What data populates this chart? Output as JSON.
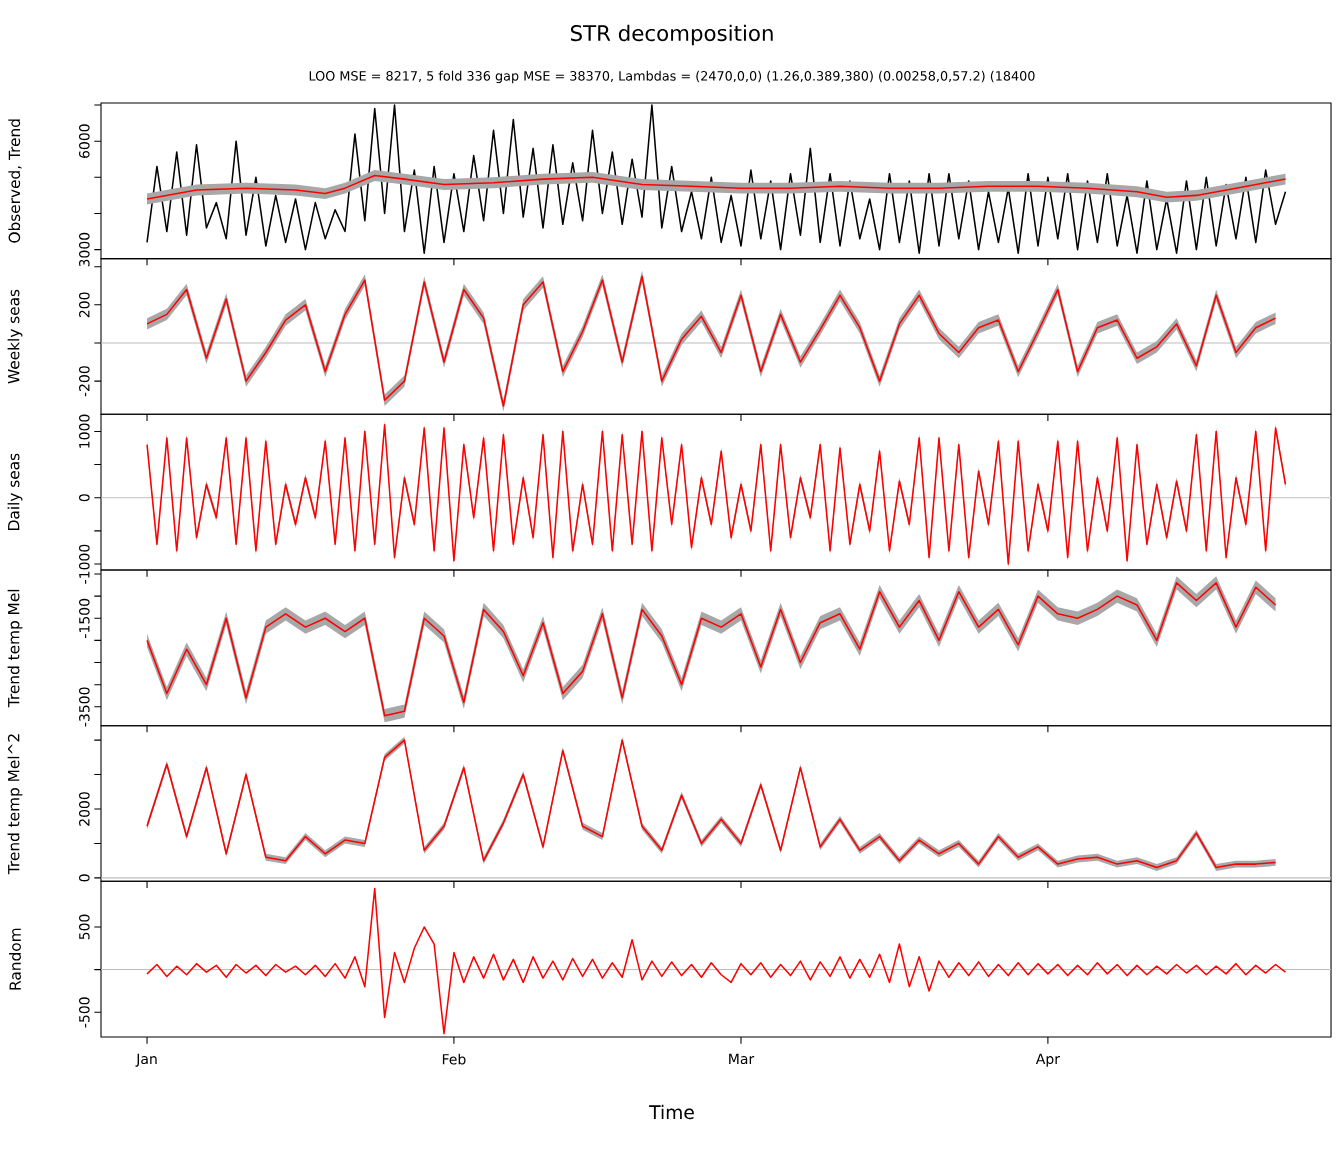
{
  "chart_data": [
    {
      "type": "line",
      "title": "STR decomposition",
      "subtitle": "LOO MSE = 8217, 5 fold 336 gap MSE = 38370, Lambdas = (2470,0,0) (1.26,0.389,380) (0.00258,0,57.2) (18400",
      "ylabel": "Observed, Trend",
      "x": [
        "2000-01-01",
        "2000-01-02",
        "2000-01-03",
        "2000-01-04",
        "2000-01-05",
        "2000-01-06",
        "2000-01-07",
        "2000-01-08",
        "2000-01-09",
        "2000-01-10",
        "2000-01-11",
        "2000-01-12",
        "2000-01-13",
        "2000-01-14",
        "2000-01-15",
        "2000-01-16",
        "2000-01-17",
        "2000-01-18",
        "2000-01-19",
        "2000-01-20",
        "2000-01-21",
        "2000-01-22",
        "2000-01-23",
        "2000-01-24",
        "2000-01-25",
        "2000-01-26",
        "2000-01-27",
        "2000-01-28",
        "2000-01-29",
        "2000-01-30",
        "2000-01-31",
        "2000-02-01",
        "2000-02-02",
        "2000-02-03",
        "2000-02-04",
        "2000-02-05",
        "2000-02-06",
        "2000-02-07",
        "2000-02-08",
        "2000-02-09",
        "2000-02-10",
        "2000-02-11",
        "2000-02-12",
        "2000-02-13",
        "2000-02-14",
        "2000-02-15",
        "2000-02-16",
        "2000-02-17",
        "2000-02-18",
        "2000-02-19",
        "2000-02-20",
        "2000-02-21",
        "2000-02-22",
        "2000-02-23",
        "2000-02-24",
        "2000-02-25",
        "2000-02-26",
        "2000-02-27",
        "2000-02-28",
        "2000-02-29",
        "2000-03-01",
        "2000-03-02",
        "2000-03-03",
        "2000-03-04",
        "2000-03-05",
        "2000-03-06",
        "2000-03-07",
        "2000-03-08",
        "2000-03-09",
        "2000-03-10",
        "2000-03-11",
        "2000-03-12",
        "2000-03-13",
        "2000-03-14",
        "2000-03-15",
        "2000-03-16",
        "2000-03-17",
        "2000-03-18",
        "2000-03-19",
        "2000-03-20",
        "2000-03-21",
        "2000-03-22",
        "2000-03-23",
        "2000-03-24",
        "2000-03-25",
        "2000-03-26",
        "2000-03-27",
        "2000-03-28",
        "2000-03-29",
        "2000-03-30",
        "2000-03-31",
        "2000-04-01",
        "2000-04-02",
        "2000-04-03",
        "2000-04-04",
        "2000-04-05",
        "2000-04-06",
        "2000-04-07",
        "2000-04-08",
        "2000-04-09",
        "2000-04-10",
        "2000-04-11",
        "2000-04-12",
        "2000-04-13",
        "2000-04-14",
        "2000-04-15",
        "2000-04-16",
        "2000-04-17",
        "2000-04-18",
        "2000-04-19",
        "2000-04-20",
        "2000-04-21",
        "2000-04-22",
        "2000-04-23",
        "2000-04-24",
        "2000-04-25"
      ],
      "series": [
        {
          "color": "#000000",
          "values": [
            3200,
            5300,
            3500,
            5700,
            3400,
            5900,
            3600,
            4300,
            3300,
            6000,
            3400,
            5000,
            3100,
            4500,
            3200,
            4400,
            3000,
            4300,
            3300,
            4100,
            3500,
            6200,
            3800,
            6900,
            4000,
            7000,
            3500,
            5200,
            2900,
            5300,
            3200,
            5100,
            3500,
            5600,
            3800,
            6300,
            4000,
            6600,
            3900,
            5800,
            3600,
            5900,
            3700,
            5400,
            3800,
            6300,
            4000,
            5700,
            3700,
            5500,
            3900,
            7000,
            3600,
            5300,
            3500,
            4600,
            3300,
            5000,
            3200,
            4500,
            3100,
            5200,
            3300,
            4900,
            3000,
            5100,
            3400,
            5800,
            3200,
            5100,
            3100,
            4900,
            3300,
            4400,
            3000,
            5100,
            3200,
            4900,
            2900,
            5100,
            3100,
            5100,
            3300,
            4900,
            3000,
            4600,
            3200,
            4700,
            2900,
            5100,
            3100,
            5000,
            3300,
            5100,
            3000,
            4900,
            3200,
            5100,
            3100,
            4500,
            2900,
            4900,
            3000,
            4400,
            2900,
            4900,
            3000,
            5000,
            3100,
            4800,
            3300,
            5000,
            3200,
            5200,
            3700,
            4600
          ]
        },
        {
          "color": "#ff0000",
          "x": [
            "2000-01-01",
            "2000-01-06",
            "2000-01-11",
            "2000-01-16",
            "2000-01-19",
            "2000-01-21",
            "2000-01-24",
            "2000-01-27",
            "2000-01-31",
            "2000-02-05",
            "2000-02-10",
            "2000-02-15",
            "2000-02-20",
            "2000-02-25",
            "2000-03-01",
            "2000-03-06",
            "2000-03-11",
            "2000-03-16",
            "2000-03-21",
            "2000-03-26",
            "2000-03-31",
            "2000-04-05",
            "2000-04-10",
            "2000-04-13",
            "2000-04-16",
            "2000-04-20",
            "2000-04-25"
          ],
          "values": [
            4400,
            4650,
            4700,
            4650,
            4550,
            4700,
            5050,
            4950,
            4800,
            4850,
            4950,
            5000,
            4800,
            4750,
            4700,
            4700,
            4750,
            4700,
            4700,
            4750,
            4750,
            4700,
            4600,
            4450,
            4500,
            4700,
            4950
          ],
          "lower": [
            4250,
            4500,
            4550,
            4500,
            4400,
            4550,
            4900,
            4800,
            4650,
            4700,
            4800,
            4850,
            4650,
            4600,
            4550,
            4550,
            4600,
            4550,
            4550,
            4600,
            4600,
            4550,
            4450,
            4300,
            4350,
            4550,
            4800
          ],
          "upper": [
            4550,
            4800,
            4850,
            4800,
            4700,
            4850,
            5200,
            5100,
            4950,
            5000,
            5100,
            5150,
            4950,
            4900,
            4850,
            4850,
            4900,
            4850,
            4850,
            4900,
            4900,
            4850,
            4750,
            4600,
            4650,
            4850,
            5100
          ]
        }
      ],
      "xlim": [
        "1999-12-27T08:24",
        "2000-04-29T14:24"
      ],
      "xticks": [
        {
          "value": "2000-01-01",
          "label": null
        },
        {
          "value": "2000-02-01",
          "label": null
        },
        {
          "value": "2000-03-01",
          "label": null
        },
        {
          "value": "2000-04-01",
          "label": null
        }
      ],
      "ylim": [
        2750,
        7056
      ],
      "yticks": [
        3000,
        {
          "value": 4000,
          "label": null
        },
        {
          "value": 5000,
          "label": null
        },
        6000,
        {
          "value": 7000,
          "label": null
        }
      ],
      "tick_labels": "y"
    },
    {
      "type": "line",
      "ylabel": "Weekly seas",
      "x": [
        "2000-01-01",
        "2000-01-03",
        "2000-01-05",
        "2000-01-07",
        "2000-01-09",
        "2000-01-11",
        "2000-01-13",
        "2000-01-15",
        "2000-01-17",
        "2000-01-19",
        "2000-01-21",
        "2000-01-23",
        "2000-01-25",
        "2000-01-27",
        "2000-01-29",
        "2000-01-31",
        "2000-02-02",
        "2000-02-04",
        "2000-02-06",
        "2000-02-08",
        "2000-02-10",
        "2000-02-12",
        "2000-02-14",
        "2000-02-16",
        "2000-02-18",
        "2000-02-20",
        "2000-02-22",
        "2000-02-24",
        "2000-02-26",
        "2000-02-28",
        "2000-03-01",
        "2000-03-03",
        "2000-03-05",
        "2000-03-07",
        "2000-03-09",
        "2000-03-11",
        "2000-03-13",
        "2000-03-15",
        "2000-03-17",
        "2000-03-19",
        "2000-03-21",
        "2000-03-23",
        "2000-03-25",
        "2000-03-27",
        "2000-03-29",
        "2000-03-31",
        "2000-04-02",
        "2000-04-04",
        "2000-04-06",
        "2000-04-08",
        "2000-04-10",
        "2000-04-12",
        "2000-04-14",
        "2000-04-16",
        "2000-04-18",
        "2000-04-20",
        "2000-04-22",
        "2000-04-24"
      ],
      "series": [
        {
          "color": "#ff0000",
          "values": [
            100,
            150,
            280,
            -80,
            230,
            -200,
            -50,
            120,
            200,
            -150,
            150,
            330,
            -300,
            -200,
            320,
            -100,
            280,
            130,
            -330,
            200,
            320,
            -150,
            60,
            330,
            -100,
            350,
            -200,
            20,
            140,
            -50,
            250,
            -150,
            150,
            -100,
            70,
            250,
            80,
            -200,
            100,
            250,
            50,
            -50,
            80,
            120,
            -150,
            60,
            280,
            -150,
            80,
            120,
            -80,
            -20,
            100,
            -120,
            250,
            -50,
            80,
            130
          ],
          "lower": [
            70,
            120,
            250,
            -110,
            200,
            -230,
            -80,
            90,
            170,
            -180,
            120,
            300,
            -330,
            -230,
            290,
            -130,
            250,
            100,
            -360,
            170,
            290,
            -180,
            30,
            300,
            -130,
            320,
            -230,
            -10,
            110,
            -80,
            220,
            -180,
            120,
            -130,
            40,
            220,
            50,
            -230,
            70,
            220,
            20,
            -80,
            50,
            90,
            -180,
            30,
            250,
            -180,
            50,
            90,
            -110,
            -50,
            70,
            -150,
            220,
            -80,
            50,
            100
          ],
          "upper": [
            130,
            180,
            310,
            -50,
            260,
            -170,
            -20,
            150,
            230,
            -120,
            180,
            360,
            -270,
            -170,
            350,
            -70,
            310,
            160,
            -300,
            230,
            350,
            -120,
            90,
            360,
            -70,
            380,
            -170,
            50,
            170,
            -20,
            280,
            -120,
            180,
            -70,
            100,
            280,
            110,
            -170,
            130,
            280,
            80,
            -20,
            110,
            150,
            -120,
            90,
            310,
            -120,
            110,
            150,
            -50,
            10,
            130,
            -90,
            280,
            -20,
            110,
            160
          ]
        }
      ],
      "ref_lines": [
        {
          "axis": "y",
          "value": 0,
          "color": "#bebebe"
        }
      ],
      "xlim": [
        "1999-12-27T08:24",
        "2000-04-29T14:24"
      ],
      "xticks": [
        {
          "value": "2000-01-01",
          "label": null
        },
        {
          "value": "2000-02-01",
          "label": null
        },
        {
          "value": "2000-03-01",
          "label": null
        },
        {
          "value": "2000-04-01",
          "label": null
        }
      ],
      "ylim": [
        -374,
        442
      ],
      "yticks": [
        -200,
        {
          "value": 0,
          "label": null
        },
        200,
        {
          "value": 400,
          "label": null
        }
      ],
      "tick_labels": "y"
    },
    {
      "type": "line",
      "ylabel": "Daily seas",
      "x": [
        "2000-01-01",
        "2000-01-02",
        "2000-01-03",
        "2000-01-04",
        "2000-01-05",
        "2000-01-06",
        "2000-01-07",
        "2000-01-08",
        "2000-01-09",
        "2000-01-10",
        "2000-01-11",
        "2000-01-12",
        "2000-01-13",
        "2000-01-14",
        "2000-01-15",
        "2000-01-16",
        "2000-01-17",
        "2000-01-18",
        "2000-01-19",
        "2000-01-20",
        "2000-01-21",
        "2000-01-22",
        "2000-01-23",
        "2000-01-24",
        "2000-01-25",
        "2000-01-26",
        "2000-01-27",
        "2000-01-28",
        "2000-01-29",
        "2000-01-30",
        "2000-01-31",
        "2000-02-01",
        "2000-02-02",
        "2000-02-03",
        "2000-02-04",
        "2000-02-05",
        "2000-02-06",
        "2000-02-07",
        "2000-02-08",
        "2000-02-09",
        "2000-02-10",
        "2000-02-11",
        "2000-02-12",
        "2000-02-13",
        "2000-02-14",
        "2000-02-15",
        "2000-02-16",
        "2000-02-17",
        "2000-02-18",
        "2000-02-19",
        "2000-02-20",
        "2000-02-21",
        "2000-02-22",
        "2000-02-23",
        "2000-02-24",
        "2000-02-25",
        "2000-02-26",
        "2000-02-27",
        "2000-02-28",
        "2000-02-29",
        "2000-03-01",
        "2000-03-02",
        "2000-03-03",
        "2000-03-04",
        "2000-03-05",
        "2000-03-06",
        "2000-03-07",
        "2000-03-08",
        "2000-03-09",
        "2000-03-10",
        "2000-03-11",
        "2000-03-12",
        "2000-03-13",
        "2000-03-14",
        "2000-03-15",
        "2000-03-16",
        "2000-03-17",
        "2000-03-18",
        "2000-03-19",
        "2000-03-20",
        "2000-03-21",
        "2000-03-22",
        "2000-03-23",
        "2000-03-24",
        "2000-03-25",
        "2000-03-26",
        "2000-03-27",
        "2000-03-28",
        "2000-03-29",
        "2000-03-30",
        "2000-03-31",
        "2000-04-01",
        "2000-04-02",
        "2000-04-03",
        "2000-04-04",
        "2000-04-05",
        "2000-04-06",
        "2000-04-07",
        "2000-04-08",
        "2000-04-09",
        "2000-04-10",
        "2000-04-11",
        "2000-04-12",
        "2000-04-13",
        "2000-04-14",
        "2000-04-15",
        "2000-04-16",
        "2000-04-17",
        "2000-04-18",
        "2000-04-19",
        "2000-04-20",
        "2000-04-21",
        "2000-04-22",
        "2000-04-23",
        "2000-04-24",
        "2000-04-25"
      ],
      "series": [
        {
          "color": "#ff0000",
          "values": [
            800,
            -700,
            900,
            -800,
            900,
            -600,
            200,
            -300,
            900,
            -700,
            900,
            -800,
            850,
            -700,
            200,
            -400,
            300,
            -300,
            850,
            -700,
            900,
            -800,
            1000,
            -700,
            1100,
            -900,
            300,
            -400,
            1050,
            -800,
            1050,
            -950,
            800,
            -300,
            900,
            -800,
            950,
            -700,
            300,
            -600,
            950,
            -900,
            1000,
            -800,
            200,
            -700,
            1000,
            -800,
            950,
            -700,
            1000,
            -800,
            900,
            -400,
            800,
            -750,
            300,
            -400,
            700,
            -600,
            200,
            -500,
            800,
            -800,
            800,
            -600,
            300,
            -300,
            800,
            -800,
            750,
            -700,
            200,
            -500,
            700,
            -800,
            250,
            -400,
            900,
            -900,
            900,
            -800,
            800,
            -900,
            400,
            -400,
            850,
            -1000,
            850,
            -800,
            200,
            -500,
            850,
            -900,
            850,
            -800,
            300,
            -500,
            900,
            -950,
            800,
            -700,
            200,
            -600,
            250,
            -500,
            950,
            -800,
            1000,
            -900,
            300,
            -400,
            1000,
            -800,
            1050,
            200
          ],
          "lower": [
            740,
            -760,
            840,
            -860,
            840,
            -660,
            140,
            -360,
            840,
            -760,
            840,
            -860,
            790,
            -760,
            140,
            -460,
            240,
            -360,
            790,
            -760,
            840,
            -860,
            940,
            -760,
            1040,
            -960,
            240,
            -460,
            990,
            -860,
            990,
            -1010,
            740,
            -360,
            840,
            -860,
            890,
            -760,
            240,
            -660,
            890,
            -960,
            940,
            -860,
            140,
            -760,
            940,
            -860,
            890,
            -760,
            940,
            -860,
            840,
            -460,
            740,
            -810,
            240,
            -460,
            640,
            -660,
            140,
            -560,
            740,
            -860,
            740,
            -660,
            240,
            -360,
            740,
            -860,
            690,
            -760,
            140,
            -560,
            640,
            -860,
            190,
            -460,
            840,
            -960,
            840,
            -860,
            740,
            -960,
            340,
            -460,
            790,
            -1060,
            790,
            -860,
            140,
            -560,
            790,
            -960,
            790,
            -860,
            240,
            -560,
            840,
            -1010,
            740,
            -760,
            140,
            -660,
            190,
            -560,
            890,
            -860,
            940,
            -960,
            240,
            -460,
            940,
            -860,
            990,
            140
          ],
          "upper": [
            860,
            -640,
            960,
            -740,
            960,
            -540,
            260,
            -240,
            960,
            -640,
            960,
            -740,
            910,
            -640,
            260,
            -340,
            360,
            -240,
            910,
            -640,
            960,
            -740,
            1060,
            -640,
            1160,
            -840,
            360,
            -340,
            1110,
            -740,
            1110,
            -890,
            860,
            -240,
            960,
            -740,
            1010,
            -640,
            360,
            -540,
            1010,
            -840,
            1060,
            -740,
            260,
            -640,
            1060,
            -740,
            1010,
            -640,
            1060,
            -740,
            960,
            -340,
            860,
            -690,
            360,
            -340,
            760,
            -540,
            260,
            -440,
            860,
            -740,
            860,
            -540,
            360,
            -240,
            860,
            -740,
            810,
            -640,
            260,
            -440,
            760,
            -740,
            310,
            -340,
            960,
            -840,
            960,
            -740,
            860,
            -840,
            460,
            -340,
            910,
            -940,
            910,
            -740,
            260,
            -440,
            910,
            -840,
            910,
            -740,
            360,
            -440,
            960,
            -890,
            860,
            -640,
            260,
            -540,
            310,
            -440,
            1010,
            -740,
            1060,
            -840,
            360,
            -340,
            1060,
            -740,
            1110,
            260
          ]
        }
      ],
      "ref_lines": [
        {
          "axis": "y",
          "value": 0,
          "color": "#bebebe"
        }
      ],
      "xlim": [
        "1999-12-27T08:24",
        "2000-04-29T14:24"
      ],
      "xticks": [
        {
          "value": "2000-01-01",
          "label": null
        },
        {
          "value": "2000-02-01",
          "label": null
        },
        {
          "value": "2000-03-01",
          "label": null
        },
        {
          "value": "2000-04-01",
          "label": null
        }
      ],
      "ylim": [
        -1090,
        1258
      ],
      "yticks": [
        -1000,
        {
          "value": -500,
          "label": null
        },
        0,
        {
          "value": 500,
          "label": null
        },
        1000
      ],
      "tick_labels": "y"
    },
    {
      "type": "line",
      "ylabel": "Trend temp Mel",
      "x": [
        "2000-01-01",
        "2000-01-03",
        "2000-01-05",
        "2000-01-07",
        "2000-01-09",
        "2000-01-11",
        "2000-01-13",
        "2000-01-15",
        "2000-01-17",
        "2000-01-19",
        "2000-01-21",
        "2000-01-23",
        "2000-01-25",
        "2000-01-27",
        "2000-01-29",
        "2000-01-31",
        "2000-02-02",
        "2000-02-04",
        "2000-02-06",
        "2000-02-08",
        "2000-02-10",
        "2000-02-12",
        "2000-02-14",
        "2000-02-16",
        "2000-02-18",
        "2000-02-20",
        "2000-02-22",
        "2000-02-24",
        "2000-02-26",
        "2000-02-28",
        "2000-03-01",
        "2000-03-03",
        "2000-03-05",
        "2000-03-07",
        "2000-03-09",
        "2000-03-11",
        "2000-03-13",
        "2000-03-15",
        "2000-03-17",
        "2000-03-19",
        "2000-03-21",
        "2000-03-23",
        "2000-03-25",
        "2000-03-27",
        "2000-03-29",
        "2000-03-31",
        "2000-04-02",
        "2000-04-04",
        "2000-04-06",
        "2000-04-08",
        "2000-04-10",
        "2000-04-12",
        "2000-04-14",
        "2000-04-16",
        "2000-04-18",
        "2000-04-20",
        "2000-04-22",
        "2000-04-24"
      ],
      "series": [
        {
          "color": "#ff0000",
          "values": [
            -2000,
            -3200,
            -2200,
            -3000,
            -1500,
            -3300,
            -1700,
            -1400,
            -1700,
            -1500,
            -1800,
            -1500,
            -3700,
            -3600,
            -1500,
            -1900,
            -3400,
            -1300,
            -1800,
            -2800,
            -1600,
            -3200,
            -2700,
            -1400,
            -3300,
            -1300,
            -1900,
            -3000,
            -1500,
            -1700,
            -1400,
            -2600,
            -1300,
            -2500,
            -1600,
            -1400,
            -2200,
            -900,
            -1700,
            -1100,
            -2000,
            -900,
            -1700,
            -1300,
            -2100,
            -1000,
            -1400,
            -1500,
            -1300,
            -1000,
            -1200,
            -2000,
            -700,
            -1100,
            -700,
            -1700,
            -800,
            -1200
          ],
          "lower": [
            -2150,
            -3350,
            -2350,
            -3150,
            -1650,
            -3450,
            -1850,
            -1550,
            -1850,
            -1650,
            -1950,
            -1650,
            -3850,
            -3750,
            -1650,
            -2050,
            -3550,
            -1450,
            -1950,
            -2950,
            -1750,
            -3350,
            -2850,
            -1550,
            -3450,
            -1450,
            -2050,
            -3150,
            -1650,
            -1850,
            -1550,
            -2750,
            -1450,
            -2650,
            -1750,
            -1550,
            -2350,
            -1050,
            -1850,
            -1250,
            -2150,
            -1050,
            -1850,
            -1450,
            -2250,
            -1150,
            -1550,
            -1650,
            -1450,
            -1150,
            -1350,
            -2150,
            -850,
            -1250,
            -850,
            -1850,
            -950,
            -1350
          ],
          "upper": [
            -1850,
            -3050,
            -2050,
            -2850,
            -1350,
            -3150,
            -1550,
            -1250,
            -1550,
            -1350,
            -1650,
            -1350,
            -3550,
            -3450,
            -1350,
            -1750,
            -3250,
            -1150,
            -1650,
            -2650,
            -1450,
            -3050,
            -2550,
            -1250,
            -3150,
            -1150,
            -1750,
            -2850,
            -1350,
            -1550,
            -1250,
            -2450,
            -1150,
            -2350,
            -1450,
            -1250,
            -2050,
            -750,
            -1550,
            -950,
            -1850,
            -750,
            -1550,
            -1150,
            -1950,
            -850,
            -1250,
            -1350,
            -1150,
            -850,
            -1050,
            -1850,
            -550,
            -950,
            -550,
            -1550,
            -650,
            -1050
          ]
        }
      ],
      "xlim": [
        "1999-12-27T08:24",
        "2000-04-29T14:24"
      ],
      "xticks": [
        {
          "value": "2000-01-01",
          "label": null
        },
        {
          "value": "2000-02-01",
          "label": null
        },
        {
          "value": "2000-03-01",
          "label": null
        },
        {
          "value": "2000-04-01",
          "label": null
        }
      ],
      "ylim": [
        -3926,
        -410
      ],
      "yticks": [
        -3500,
        {
          "value": -3000,
          "label": null
        },
        {
          "value": -2500,
          "label": null
        },
        {
          "value": -2000,
          "label": null
        },
        -1500,
        {
          "value": -1000,
          "label": null
        },
        {
          "value": -500,
          "label": null
        }
      ],
      "tick_labels": "y"
    },
    {
      "type": "line",
      "ylabel": "Trend temp Mel^2",
      "x": [
        "2000-01-01",
        "2000-01-03",
        "2000-01-05",
        "2000-01-07",
        "2000-01-09",
        "2000-01-11",
        "2000-01-13",
        "2000-01-15",
        "2000-01-17",
        "2000-01-19",
        "2000-01-21",
        "2000-01-23",
        "2000-01-25",
        "2000-01-27",
        "2000-01-29",
        "2000-01-31",
        "2000-02-02",
        "2000-02-04",
        "2000-02-06",
        "2000-02-08",
        "2000-02-10",
        "2000-02-12",
        "2000-02-14",
        "2000-02-16",
        "2000-02-18",
        "2000-02-20",
        "2000-02-22",
        "2000-02-24",
        "2000-02-26",
        "2000-02-28",
        "2000-03-01",
        "2000-03-03",
        "2000-03-05",
        "2000-03-07",
        "2000-03-09",
        "2000-03-11",
        "2000-03-13",
        "2000-03-15",
        "2000-03-17",
        "2000-03-19",
        "2000-03-21",
        "2000-03-23",
        "2000-03-25",
        "2000-03-27",
        "2000-03-29",
        "2000-03-31",
        "2000-04-02",
        "2000-04-04",
        "2000-04-06",
        "2000-04-08",
        "2000-04-10",
        "2000-04-12",
        "2000-04-14",
        "2000-04-16",
        "2000-04-18",
        "2000-04-20",
        "2000-04-22",
        "2000-04-24"
      ],
      "series": [
        {
          "color": "#ff0000",
          "values": [
            1500,
            3300,
            1200,
            3200,
            700,
            3000,
            600,
            500,
            1200,
            700,
            1100,
            1000,
            3500,
            4000,
            800,
            1500,
            3200,
            500,
            1600,
            3000,
            900,
            3700,
            1500,
            1200,
            4000,
            1500,
            800,
            2400,
            1000,
            1700,
            1000,
            2700,
            800,
            3200,
            900,
            1700,
            800,
            1200,
            500,
            1100,
            700,
            1000,
            400,
            1200,
            600,
            900,
            400,
            550,
            600,
            400,
            500,
            300,
            500,
            1300,
            300,
            400,
            400,
            450
          ],
          "lower": [
            1400,
            3200,
            1100,
            3100,
            600,
            2900,
            500,
            400,
            1100,
            600,
            1000,
            900,
            3400,
            3900,
            700,
            1400,
            3100,
            400,
            1500,
            2900,
            800,
            3600,
            1400,
            1100,
            3900,
            1400,
            700,
            2300,
            900,
            1600,
            900,
            2600,
            700,
            3100,
            800,
            1600,
            700,
            1100,
            400,
            1000,
            600,
            900,
            300,
            1100,
            500,
            800,
            300,
            450,
            500,
            300,
            400,
            200,
            400,
            1200,
            200,
            300,
            300,
            350
          ],
          "upper": [
            1600,
            3400,
            1300,
            3300,
            800,
            3100,
            700,
            600,
            1300,
            800,
            1200,
            1100,
            3600,
            4100,
            900,
            1600,
            3300,
            600,
            1700,
            3100,
            1000,
            3800,
            1600,
            1300,
            4100,
            1600,
            900,
            2500,
            1100,
            1800,
            1100,
            2800,
            900,
            3300,
            1000,
            1800,
            900,
            1300,
            600,
            1200,
            800,
            1100,
            500,
            1300,
            700,
            1000,
            500,
            650,
            700,
            500,
            600,
            400,
            600,
            1400,
            400,
            500,
            500,
            550
          ]
        }
      ],
      "ref_lines": [
        {
          "axis": "y",
          "value": 0,
          "color": "#bebebe"
        }
      ],
      "xlim": [
        "1999-12-27T08:24",
        "2000-04-29T14:24"
      ],
      "xticks": [
        {
          "value": "2000-01-01",
          "label": null
        },
        {
          "value": "2000-02-01",
          "label": null
        },
        {
          "value": "2000-03-01",
          "label": null
        },
        {
          "value": "2000-04-01",
          "label": null
        }
      ],
      "ylim": [
        -100,
        4420
      ],
      "yticks": [
        0,
        {
          "value": 1000,
          "label": null
        },
        2000,
        {
          "value": 3000,
          "label": null
        },
        {
          "value": 4000,
          "label": null
        }
      ],
      "tick_labels": "y"
    },
    {
      "type": "line",
      "ylabel": "Random",
      "xlabel": "Time",
      "x": [
        "2000-01-01",
        "2000-01-02",
        "2000-01-03",
        "2000-01-04",
        "2000-01-05",
        "2000-01-06",
        "2000-01-07",
        "2000-01-08",
        "2000-01-09",
        "2000-01-10",
        "2000-01-11",
        "2000-01-12",
        "2000-01-13",
        "2000-01-14",
        "2000-01-15",
        "2000-01-16",
        "2000-01-17",
        "2000-01-18",
        "2000-01-19",
        "2000-01-20",
        "2000-01-21",
        "2000-01-22",
        "2000-01-23",
        "2000-01-24",
        "2000-01-25",
        "2000-01-26",
        "2000-01-27",
        "2000-01-28",
        "2000-01-29",
        "2000-01-30",
        "2000-01-31",
        "2000-02-01",
        "2000-02-02",
        "2000-02-03",
        "2000-02-04",
        "2000-02-05",
        "2000-02-06",
        "2000-02-07",
        "2000-02-08",
        "2000-02-09",
        "2000-02-10",
        "2000-02-11",
        "2000-02-12",
        "2000-02-13",
        "2000-02-14",
        "2000-02-15",
        "2000-02-16",
        "2000-02-17",
        "2000-02-18",
        "2000-02-19",
        "2000-02-20",
        "2000-02-21",
        "2000-02-22",
        "2000-02-23",
        "2000-02-24",
        "2000-02-25",
        "2000-02-26",
        "2000-02-27",
        "2000-02-28",
        "2000-02-29",
        "2000-03-01",
        "2000-03-02",
        "2000-03-03",
        "2000-03-04",
        "2000-03-05",
        "2000-03-06",
        "2000-03-07",
        "2000-03-08",
        "2000-03-09",
        "2000-03-10",
        "2000-03-11",
        "2000-03-12",
        "2000-03-13",
        "2000-03-14",
        "2000-03-15",
        "2000-03-16",
        "2000-03-17",
        "2000-03-18",
        "2000-03-19",
        "2000-03-20",
        "2000-03-21",
        "2000-03-22",
        "2000-03-23",
        "2000-03-24",
        "2000-03-25",
        "2000-03-26",
        "2000-03-27",
        "2000-03-28",
        "2000-03-29",
        "2000-03-30",
        "2000-03-31",
        "2000-04-01",
        "2000-04-02",
        "2000-04-03",
        "2000-04-04",
        "2000-04-05",
        "2000-04-06",
        "2000-04-07",
        "2000-04-08",
        "2000-04-09",
        "2000-04-10",
        "2000-04-11",
        "2000-04-12",
        "2000-04-13",
        "2000-04-14",
        "2000-04-15",
        "2000-04-16",
        "2000-04-17",
        "2000-04-18",
        "2000-04-19",
        "2000-04-20",
        "2000-04-21",
        "2000-04-22",
        "2000-04-23",
        "2000-04-24",
        "2000-04-25"
      ],
      "series": [
        {
          "color": "#ff0000",
          "values": [
            -50,
            60,
            -80,
            40,
            -60,
            70,
            -30,
            50,
            -90,
            60,
            -40,
            50,
            -70,
            60,
            -30,
            40,
            -60,
            50,
            -80,
            70,
            -100,
            150,
            -200,
            950,
            -560,
            200,
            -150,
            250,
            500,
            300,
            -750,
            200,
            -150,
            150,
            -100,
            180,
            -120,
            120,
            -150,
            150,
            -100,
            100,
            -120,
            130,
            -80,
            120,
            -100,
            80,
            -90,
            350,
            -120,
            100,
            -80,
            90,
            -70,
            60,
            -90,
            80,
            -60,
            -150,
            70,
            -60,
            80,
            -90,
            60,
            -70,
            100,
            -120,
            90,
            -80,
            150,
            -100,
            120,
            -90,
            180,
            -150,
            300,
            -200,
            150,
            -250,
            100,
            -90,
            80,
            -70,
            90,
            -80,
            60,
            -70,
            80,
            -60,
            70,
            -50,
            60,
            -70,
            50,
            -60,
            80,
            -50,
            60,
            -70,
            50,
            -60,
            40,
            -50,
            60,
            -40,
            50,
            -60,
            40,
            -50,
            70,
            -60,
            50,
            -40,
            60,
            -30
          ]
        }
      ],
      "ref_lines": [
        {
          "axis": "y",
          "value": 0,
          "color": "#bebebe"
        }
      ],
      "xlim": [
        "1999-12-27T08:24",
        "2000-04-29T14:24"
      ],
      "xticks": [
        {
          "value": "2000-01-01",
          "label": "Jan"
        },
        {
          "value": "2000-02-01",
          "label": "Feb"
        },
        {
          "value": "2000-03-01",
          "label": "Mar"
        },
        {
          "value": "2000-04-01",
          "label": "Apr"
        }
      ],
      "ylim": [
        -790,
        1035
      ],
      "yticks": [
        -500,
        {
          "value": 0,
          "label": null
        },
        500
      ]
    }
  ]
}
